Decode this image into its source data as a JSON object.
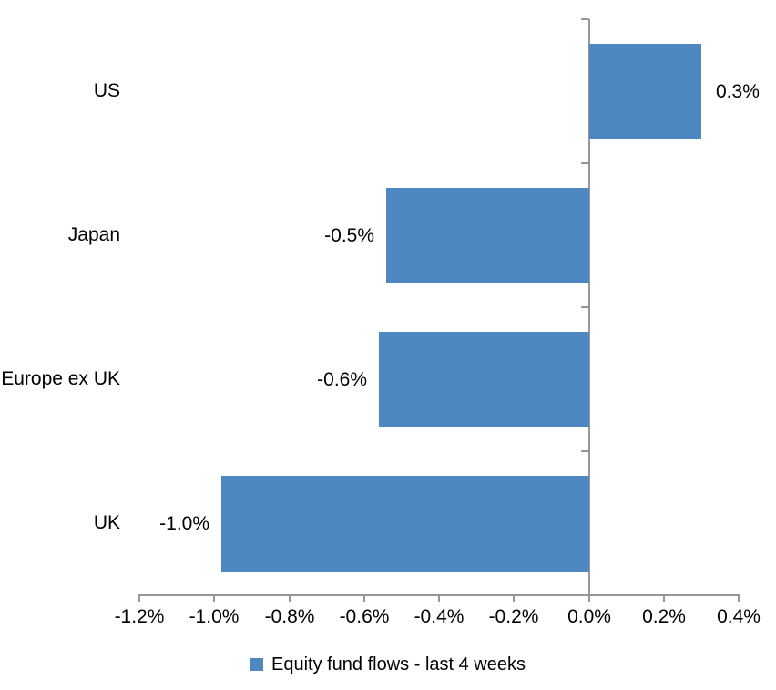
{
  "chart_data": {
    "type": "bar",
    "orientation": "horizontal",
    "title": "",
    "xlabel": "",
    "ylabel": "",
    "categories": [
      "US",
      "Japan",
      "Europe ex UK",
      "UK"
    ],
    "series": [
      {
        "name": "Equity fund flows - last 4 weeks",
        "values": [
          0.3,
          -0.54,
          -0.56,
          -0.98
        ],
        "labels": [
          "0.3%",
          "-0.5%",
          "-0.6%",
          "-1.0%"
        ],
        "color": "#4E87C1"
      }
    ],
    "xlim": [
      -1.2,
      0.4
    ],
    "x_ticks": [
      {
        "value": -1.2,
        "label": "-1.2%"
      },
      {
        "value": -1.0,
        "label": "-1.0%"
      },
      {
        "value": -0.8,
        "label": "-0.8%"
      },
      {
        "value": -0.6,
        "label": "-0.6%"
      },
      {
        "value": -0.4,
        "label": "-0.4%"
      },
      {
        "value": -0.2,
        "label": "-0.2%"
      },
      {
        "value": 0.0,
        "label": "0.0%"
      },
      {
        "value": 0.2,
        "label": "0.2%"
      },
      {
        "value": 0.4,
        "label": "0.4%"
      }
    ],
    "grid": false,
    "legend_position": "bottom",
    "axis_color": "#969696",
    "text_color": "#000000"
  }
}
